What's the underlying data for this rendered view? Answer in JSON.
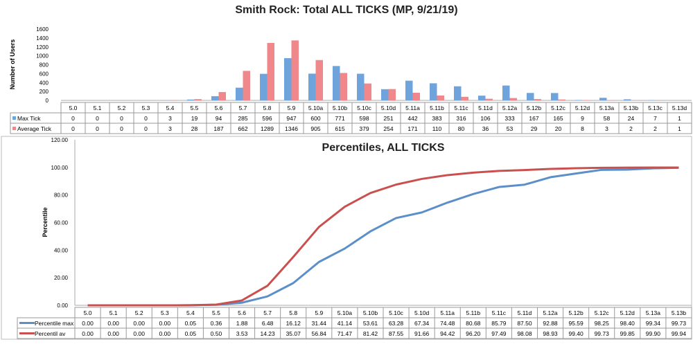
{
  "colors": {
    "max": "#6fa3dc",
    "avg": "#f0878a",
    "line_max": "#5b8fc9",
    "line_avg": "#c9504f",
    "grid": "#c0c0c0"
  },
  "chart_data": [
    {
      "type": "bar",
      "title": "Smith Rock: Total ALL TICKS (MP, 9/21/19)",
      "xlabel": "",
      "ylabel": "Number of Users",
      "ylim": [
        0,
        1600
      ],
      "yticks": [
        "0",
        "200",
        "400",
        "600",
        "800",
        "1000",
        "1200",
        "1400",
        "1600"
      ],
      "grid": false,
      "legend": "data-table",
      "categories": [
        "5.0",
        "5.1",
        "5.2",
        "5.3",
        "5.4",
        "5.5",
        "5.6",
        "5.7",
        "5.8",
        "5.9",
        "5.10a",
        "5.10b",
        "5.10c",
        "5.10d",
        "5.11a",
        "5.11b",
        "5.11c",
        "5.11d",
        "5.12a",
        "5.12b",
        "5.12c",
        "5.12d",
        "5.13a",
        "5.13b",
        "5.13c",
        "5.13d"
      ],
      "series": [
        {
          "name": "Max Tick",
          "values": [
            0,
            0,
            0,
            0,
            3,
            19,
            94,
            285,
            596,
            947,
            600,
            771,
            598,
            251,
            442,
            383,
            316,
            106,
            333,
            167,
            165,
            9,
            58,
            24,
            7,
            1
          ]
        },
        {
          "name": "Average Tick",
          "values": [
            0,
            0,
            0,
            0,
            3,
            28,
            187,
            662,
            1289,
            1346,
            905,
            615,
            379,
            254,
            171,
            110,
            80,
            36,
            53,
            29,
            20,
            8,
            3,
            2,
            2,
            1
          ]
        }
      ]
    },
    {
      "type": "line",
      "title": "Percentiles, ALL TICKS",
      "xlabel": "",
      "ylabel": "Percentile",
      "ylim": [
        0,
        120
      ],
      "yticks": [
        "0.00",
        "20.00",
        "40.00",
        "60.00",
        "80.00",
        "100.00",
        "120.00"
      ],
      "grid": false,
      "legend": "data-table",
      "categories": [
        "5.0",
        "5.1",
        "5.2",
        "5.3",
        "5.4",
        "5.5",
        "5.6",
        "5.7",
        "5.8",
        "5.9",
        "5.10a",
        "5.10b",
        "5.10c",
        "5.10d",
        "5.11a",
        "5.11b",
        "5.11c",
        "5.11d",
        "5.12a",
        "5.12b",
        "5.12c",
        "5.12d",
        "5.13a",
        "5.13b"
      ],
      "series": [
        {
          "name": "Percentile max",
          "values": [
            "0.00",
            "0.00",
            "0.00",
            "0.00",
            "0.05",
            "0.36",
            "1.88",
            "6.48",
            "16.12",
            "31.44",
            "41.14",
            "53.61",
            "63.28",
            "67.34",
            "74.48",
            "80.68",
            "85.79",
            "87.50",
            "92.88",
            "95.59",
            "98.25",
            "98.40",
            "99.34",
            "99.73"
          ]
        },
        {
          "name": "Percentil av",
          "values": [
            "0.00",
            "0.00",
            "0.00",
            "0.00",
            "0.05",
            "0.50",
            "3.53",
            "14.23",
            "35.07",
            "56.84",
            "71.47",
            "81.42",
            "87.55",
            "91.66",
            "94.42",
            "96.20",
            "97.49",
            "98.08",
            "98.93",
            "99.40",
            "99.73",
            "99.85",
            "99.90",
            "99.94"
          ]
        }
      ]
    }
  ]
}
